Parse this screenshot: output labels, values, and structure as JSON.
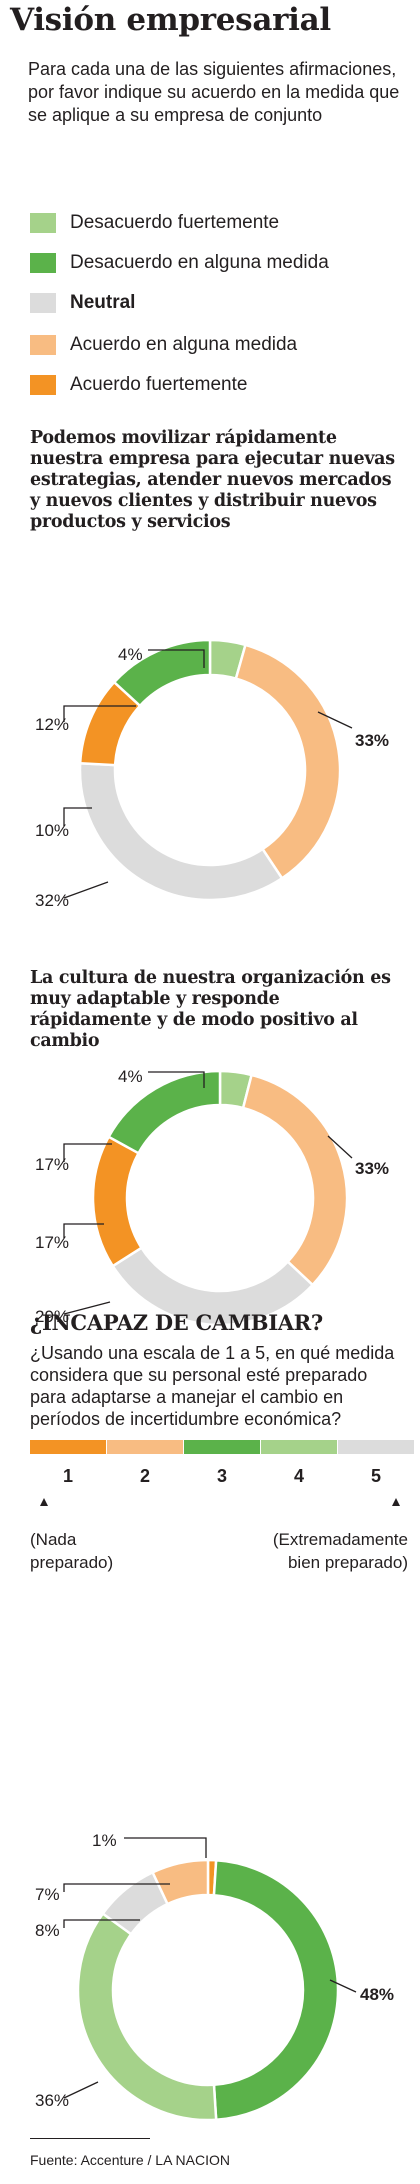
{
  "header": {
    "title": "Visión empresarial",
    "subtitle": "Para cada una de las siguientes afirmaciones, por favor indique su acuerdo en la medida que se aplique a su empresa de conjunto"
  },
  "legend": [
    {
      "label": "Desacuerdo fuertemente",
      "color": "#a5d28a",
      "bold": false
    },
    {
      "label": "Desacuerdo en alguna medida",
      "color": "#5bb24a",
      "bold": false
    },
    {
      "label": "Neutral",
      "color": "#dcdcdc",
      "bold": true
    },
    {
      "label": "Acuerdo en alguna medida",
      "color": "#f8bc82",
      "bold": false
    },
    {
      "label": "Acuerdo fuertemente",
      "color": "#f39324",
      "bold": false
    }
  ],
  "colors": {
    "c1": "#f39324",
    "c2": "#f8bc82",
    "c3": "#5bb24a",
    "c4": "#a5d28a",
    "c5": "#dcdcdc",
    "leader": "#231f20"
  },
  "scale_section": {
    "title": "¿INCAPAZ DE CAMBIAR?",
    "question": "¿Usando una escala de 1 a 5, en qué medida considera que su personal esté preparado para adaptarse a manejar el cambio en períodos de incertidumbre económica?",
    "scale": [
      {
        "label": "1",
        "color": "#f39324"
      },
      {
        "label": "2",
        "color": "#f8bc82"
      },
      {
        "label": "3",
        "color": "#5bb24a"
      },
      {
        "label": "4",
        "color": "#a5d28a"
      },
      {
        "label": "5",
        "color": "#dcdcdc"
      }
    ],
    "low_note_1": "(Nada",
    "low_note_2": "preparado)",
    "high_note_1": "(Extremadamente",
    "high_note_2": "bien preparado)"
  },
  "source": "Fuente: Accenture / LA NACION",
  "chart_data": [
    {
      "type": "pie",
      "title": "Podemos movilizar rápidamente nuestra empresa para ejecutar nuevas estrategias, atender nuevos mercados y nuevos clientes y distribuir nuevos productos y servicios",
      "categories": [
        "Desacuerdo fuertemente",
        "Acuerdo en alguna medida",
        "Neutral",
        "Acuerdo fuertemente",
        "Desacuerdo en alguna medida"
      ],
      "values": [
        4,
        33,
        32,
        10,
        12
      ],
      "labels": [
        "4%",
        "33%",
        "32%",
        "10%",
        "12%"
      ],
      "colors": [
        "#a5d28a",
        "#f8bc82",
        "#dcdcdc",
        "#f39324",
        "#5bb24a"
      ]
    },
    {
      "type": "pie",
      "title": "La cultura de nuestra organización es muy adaptable y responde rápidamente y de modo positivo al cambio",
      "categories": [
        "Desacuerdo fuertemente",
        "Acuerdo en alguna medida",
        "Neutral",
        "Acuerdo fuertemente",
        "Desacuerdo en alguna medida"
      ],
      "values": [
        4,
        33,
        29,
        17,
        17
      ],
      "labels": [
        "4%",
        "33%",
        "29%",
        "17%",
        "17%"
      ],
      "colors": [
        "#a5d28a",
        "#f8bc82",
        "#dcdcdc",
        "#f39324",
        "#5bb24a"
      ]
    },
    {
      "type": "pie",
      "title": "",
      "categories": [
        "1",
        "3",
        "4",
        "5",
        "2"
      ],
      "values": [
        1,
        48,
        36,
        8,
        7
      ],
      "labels": [
        "1%",
        "48%",
        "36%",
        "8%",
        "7%"
      ],
      "colors": [
        "#f39324",
        "#5bb24a",
        "#a5d28a",
        "#dcdcdc",
        "#f8bc82"
      ]
    }
  ]
}
